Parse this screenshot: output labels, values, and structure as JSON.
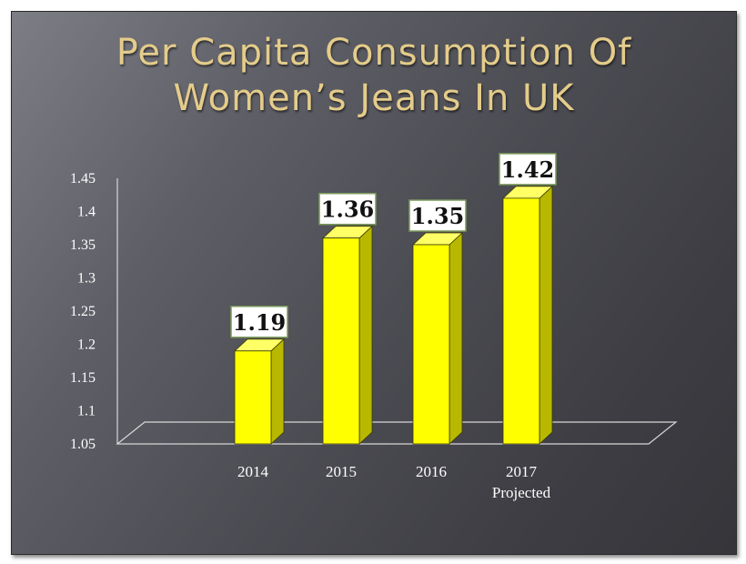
{
  "title": {
    "line1": "Per Capita Consumption Of",
    "line2": "Women’s Jeans In UK"
  },
  "chart_data": {
    "type": "bar",
    "title": "Per Capita Consumption Of Women’s Jeans In UK",
    "xlabel": "",
    "ylabel": "",
    "categories": [
      "2014",
      "2015",
      "2016",
      "2017"
    ],
    "category_sublabels": [
      "",
      "",
      "",
      "Projected"
    ],
    "values": [
      1.19,
      1.36,
      1.35,
      1.42
    ],
    "data_labels": [
      "1.19",
      "1.36",
      "1.35",
      "1.42"
    ],
    "yticks": [
      "1.05",
      "1.1",
      "1.15",
      "1.2",
      "1.25",
      "1.3",
      "1.35",
      "1.4",
      "1.45"
    ],
    "ylim": [
      1.05,
      1.45
    ],
    "grid": false,
    "legend": "none",
    "bar_color": "#ffff00",
    "bar_side_color": "#b8b800"
  }
}
